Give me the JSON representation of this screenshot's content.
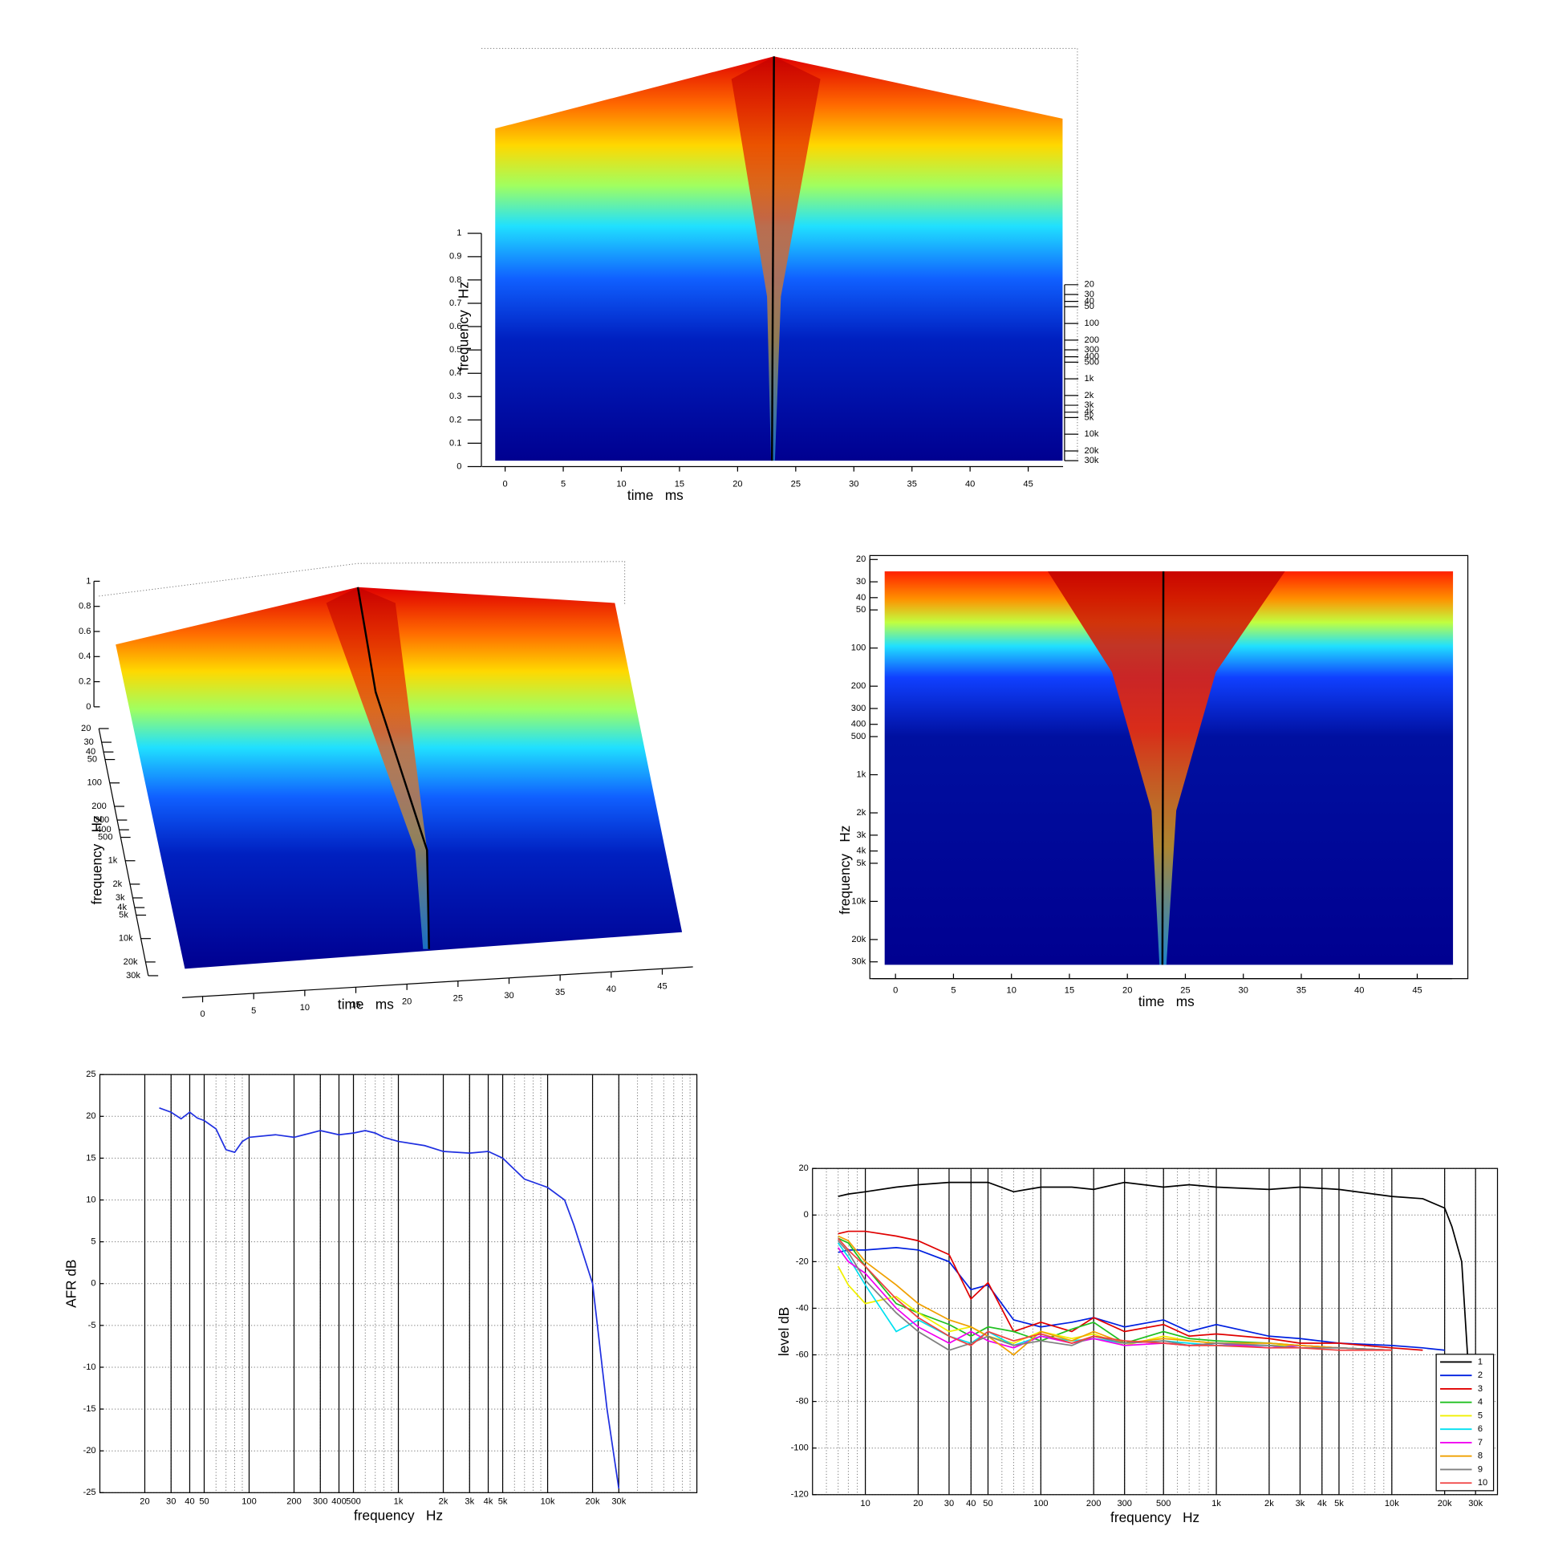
{
  "chart_data": [
    {
      "type": "surface",
      "xlabel": "time   ms",
      "ylabel": "frequency   Hz",
      "xlim": [
        -2,
        48
      ],
      "xticks": [
        0,
        5,
        10,
        15,
        20,
        25,
        30,
        35,
        40,
        45
      ],
      "ylim": [
        20,
        30000
      ],
      "log_y": true,
      "yticks": [
        20,
        30,
        40,
        50,
        100,
        200,
        300,
        400,
        500,
        {
          "value": 1000,
          "label": "1k"
        },
        {
          "value": 2000,
          "label": "2k"
        },
        {
          "value": 3000,
          "label": "3k"
        },
        {
          "value": 4000,
          "label": "4k"
        },
        {
          "value": 5000,
          "label": "5k"
        },
        {
          "value": 10000,
          "label": "10k"
        },
        {
          "value": 20000,
          "label": "20k"
        },
        {
          "value": 30000,
          "label": "30k"
        }
      ],
      "zlim": [
        0,
        1
      ],
      "zticks": [
        0,
        0.1,
        0.2,
        0.3,
        0.4,
        0.5,
        0.6,
        0.7,
        0.8,
        0.9,
        1
      ]
    },
    {
      "type": "surface",
      "xlabel": "time   ms",
      "ylabel": "frequency   Hz",
      "xlim": [
        -2,
        48
      ],
      "xticks": [
        0,
        5,
        10,
        15,
        20,
        25,
        30,
        35,
        40,
        45
      ],
      "ylim": [
        20,
        30000
      ],
      "log_y": true,
      "yticks": [
        20,
        30,
        40,
        50,
        100,
        200,
        300,
        400,
        500,
        {
          "value": 1000,
          "label": "1k"
        },
        {
          "value": 2000,
          "label": "2k"
        },
        {
          "value": 3000,
          "label": "3k"
        },
        {
          "value": 4000,
          "label": "4k"
        },
        {
          "value": 5000,
          "label": "5k"
        },
        {
          "value": 10000,
          "label": "10k"
        },
        {
          "value": 20000,
          "label": "20k"
        },
        {
          "value": 30000,
          "label": "30k"
        }
      ],
      "zlim": [
        0,
        1
      ],
      "zticks": [
        0,
        0.2,
        0.4,
        0.6,
        0.8,
        1
      ]
    },
    {
      "type": "heatmap",
      "xlabel": "time   ms",
      "ylabel": "frequency   Hz",
      "xlim": [
        -2,
        48
      ],
      "xticks": [
        0,
        5,
        10,
        15,
        20,
        25,
        30,
        35,
        40,
        45
      ],
      "ylim": [
        20,
        30000
      ],
      "log_y": true,
      "yticks": [
        20,
        30,
        40,
        50,
        100,
        200,
        300,
        400,
        500,
        {
          "value": 1000,
          "label": "1k"
        },
        {
          "value": 2000,
          "label": "2k"
        },
        {
          "value": 3000,
          "label": "3k"
        },
        {
          "value": 4000,
          "label": "4k"
        },
        {
          "value": 5000,
          "label": "5k"
        },
        {
          "value": 10000,
          "label": "10k"
        },
        {
          "value": 20000,
          "label": "20k"
        },
        {
          "value": 30000,
          "label": "30k"
        }
      ]
    },
    {
      "type": "line",
      "xlabel": "frequency   Hz",
      "ylabel": "AFR dB",
      "log_x": true,
      "grid": true,
      "xlim": [
        10,
        100000
      ],
      "xticks": [
        20,
        30,
        40,
        50,
        100,
        200,
        300,
        400,
        500,
        {
          "value": 1000,
          "label": "1k"
        },
        {
          "value": 2000,
          "label": "2k"
        },
        {
          "value": 3000,
          "label": "3k"
        },
        {
          "value": 4000,
          "label": "4k"
        },
        {
          "value": 5000,
          "label": "5k"
        },
        {
          "value": 10000,
          "label": "10k"
        },
        {
          "value": 20000,
          "label": "20k"
        },
        {
          "value": 30000,
          "label": "30k"
        }
      ],
      "ylim": [
        -25,
        25
      ],
      "yticks": [
        -25,
        -20,
        -15,
        -10,
        -5,
        0,
        5,
        10,
        15,
        20,
        25
      ],
      "x": [
        25,
        30,
        35,
        40,
        45,
        50,
        60,
        70,
        80,
        90,
        100,
        150,
        200,
        300,
        400,
        500,
        600,
        700,
        800,
        1000,
        1500,
        2000,
        3000,
        4000,
        5000,
        7000,
        10000,
        13000,
        15000,
        20000,
        25000,
        30000
      ],
      "series": [
        {
          "color": "#2030e0",
          "values": [
            21,
            20.5,
            19.7,
            20.5,
            19.8,
            19.5,
            18.5,
            16,
            15.7,
            17,
            17.5,
            17.8,
            17.5,
            18.3,
            17.8,
            18,
            18.3,
            18,
            17.5,
            17,
            16.5,
            15.8,
            15.6,
            15.8,
            15,
            12.5,
            11.5,
            10,
            7,
            0,
            -15,
            -24.5
          ]
        }
      ]
    },
    {
      "type": "line",
      "xlabel": "frequency   Hz",
      "ylabel": "level dB",
      "log_x": true,
      "grid": true,
      "legend": "lower right",
      "xlim": [
        5,
        40000
      ],
      "xticks": [
        10,
        20,
        30,
        40,
        50,
        100,
        200,
        300,
        500,
        {
          "value": 1000,
          "label": "1k"
        },
        {
          "value": 2000,
          "label": "2k"
        },
        {
          "value": 3000,
          "label": "3k"
        },
        {
          "value": 4000,
          "label": "4k"
        },
        {
          "value": 5000,
          "label": "5k"
        },
        {
          "value": 10000,
          "label": "10k"
        },
        {
          "value": 20000,
          "label": "20k"
        },
        {
          "value": 30000,
          "label": "30k"
        }
      ],
      "ylim": [
        -120,
        20
      ],
      "yticks": [
        -120,
        -100,
        -80,
        -60,
        -40,
        -20,
        0,
        20
      ],
      "x": [
        7,
        8,
        10,
        15,
        20,
        30,
        40,
        50,
        70,
        100,
        150,
        200,
        300,
        500,
        700,
        1000,
        2000,
        3000,
        5000,
        10000,
        15000,
        20000,
        22000,
        25000,
        27000
      ],
      "series": [
        {
          "name": "1",
          "color": "#000000",
          "values": [
            8,
            9,
            10,
            12,
            13,
            14,
            14,
            14,
            10,
            12,
            12,
            11,
            14,
            12,
            13,
            12,
            11,
            12,
            11,
            8,
            7,
            3,
            -5,
            -20,
            -60
          ]
        },
        {
          "name": "2",
          "color": "#0020e0",
          "values": [
            -16,
            -15,
            -15,
            -14,
            -15,
            -20,
            -32,
            -30,
            -45,
            -48,
            -46,
            -44,
            -48,
            -45,
            -50,
            -47,
            -52,
            -53,
            -55,
            -56,
            -57,
            -58,
            null,
            null,
            null
          ]
        },
        {
          "name": "3",
          "color": "#e00000",
          "values": [
            -8,
            -7,
            -7,
            -9,
            -11,
            -17,
            -36,
            -29,
            -50,
            -46,
            -50,
            -44,
            -50,
            -47,
            -52,
            -51,
            -53,
            -55,
            -55,
            -57,
            -58,
            null,
            null,
            null,
            null
          ]
        },
        {
          "name": "4",
          "color": "#20c020",
          "values": [
            -10,
            -12,
            -22,
            -38,
            -42,
            -47,
            -52,
            -48,
            -50,
            -54,
            -49,
            -46,
            -55,
            -50,
            -53,
            -54,
            -55,
            -56,
            -57,
            -58,
            null,
            null,
            null,
            null,
            null
          ]
        },
        {
          "name": "5",
          "color": "#f0f000",
          "values": [
            -22,
            -30,
            -38,
            -35,
            -42,
            -50,
            -48,
            -52,
            -55,
            -50,
            -53,
            -51,
            -56,
            -52,
            -54,
            -55,
            -56,
            -56,
            -57,
            -58,
            null,
            null,
            null,
            null,
            null
          ]
        },
        {
          "name": "6",
          "color": "#00e0f0",
          "values": [
            -12,
            -18,
            -30,
            -50,
            -45,
            -52,
            -55,
            -50,
            -56,
            -52,
            -54,
            -53,
            -55,
            -54,
            -55,
            -56,
            -56,
            -57,
            -57,
            -58,
            null,
            null,
            null,
            null,
            null
          ]
        },
        {
          "name": "7",
          "color": "#f000f0",
          "values": [
            -14,
            -20,
            -25,
            -40,
            -48,
            -55,
            -50,
            -54,
            -57,
            -52,
            -55,
            -53,
            -56,
            -55,
            -56,
            -55,
            -57,
            -56,
            -57,
            -58,
            null,
            null,
            null,
            null,
            null
          ]
        },
        {
          "name": "8",
          "color": "#f0a000",
          "values": [
            -9,
            -11,
            -20,
            -30,
            -38,
            -45,
            -48,
            -52,
            -60,
            -50,
            -54,
            -50,
            -55,
            -53,
            -54,
            -55,
            -55,
            -56,
            -57,
            -58,
            null,
            null,
            null,
            null,
            null
          ]
        },
        {
          "name": "9",
          "color": "#808080",
          "values": [
            -11,
            -16,
            -28,
            -42,
            -50,
            -58,
            -55,
            -52,
            -56,
            -54,
            -56,
            -52,
            -55,
            -54,
            -56,
            -55,
            -56,
            -57,
            -57,
            -58,
            null,
            null,
            null,
            null,
            null
          ]
        },
        {
          "name": "10",
          "color": "#f04040",
          "values": [
            -10,
            -15,
            -22,
            -36,
            -44,
            -52,
            -56,
            -50,
            -54,
            -51,
            -55,
            -52,
            -54,
            -55,
            -56,
            -56,
            -57,
            -57,
            -58,
            -58,
            null,
            null,
            null,
            null,
            null
          ]
        }
      ]
    }
  ]
}
